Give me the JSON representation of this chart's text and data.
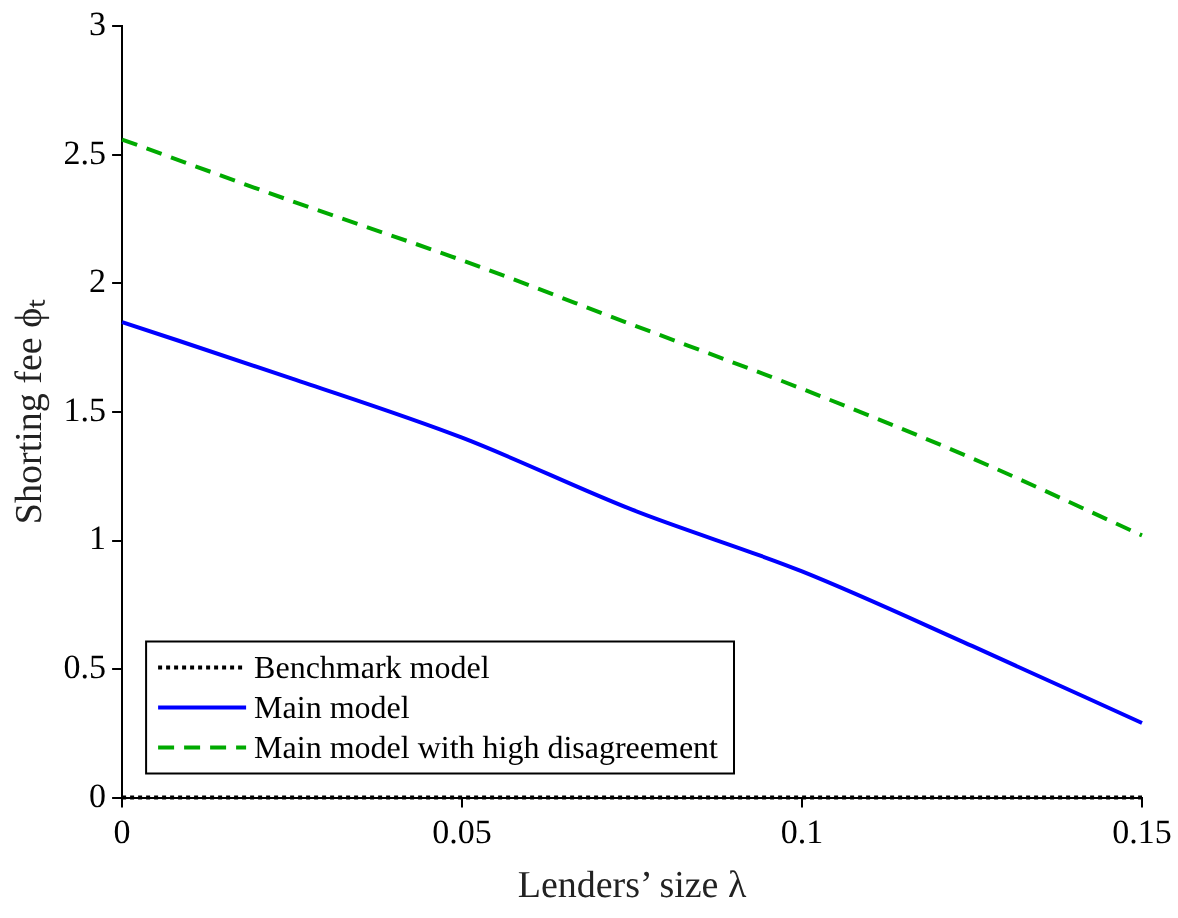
{
  "chart_data": {
    "type": "line",
    "xlabel": "Lenders’ size λ",
    "ylabel": "Shorting fee ϕₜ",
    "x": [
      0,
      0.025,
      0.05,
      0.075,
      0.1,
      0.125,
      0.15
    ],
    "series": [
      {
        "name": "Benchmark model",
        "color": "#000000",
        "line_style": "dotted",
        "values": [
          0,
          0,
          0,
          0,
          0,
          0,
          0
        ]
      },
      {
        "name": "Main model",
        "color": "#0000ff",
        "line_style": "solid",
        "values": [
          1.85,
          1.63,
          1.4,
          1.12,
          0.88,
          0.59,
          0.29
        ]
      },
      {
        "name": "Main model with high disagreement",
        "color": "#00aa00",
        "line_style": "dashed",
        "values": [
          2.56,
          2.32,
          2.09,
          1.84,
          1.59,
          1.32,
          1.02
        ]
      }
    ],
    "xlim": [
      0,
      0.15
    ],
    "xticks": [
      0,
      0.05,
      0.1,
      0.15
    ],
    "ylim": [
      0,
      3
    ],
    "yticks": [
      0,
      0.5,
      1,
      1.5,
      2,
      2.5,
      3
    ],
    "legend": "bottom left",
    "marker": "none"
  }
}
